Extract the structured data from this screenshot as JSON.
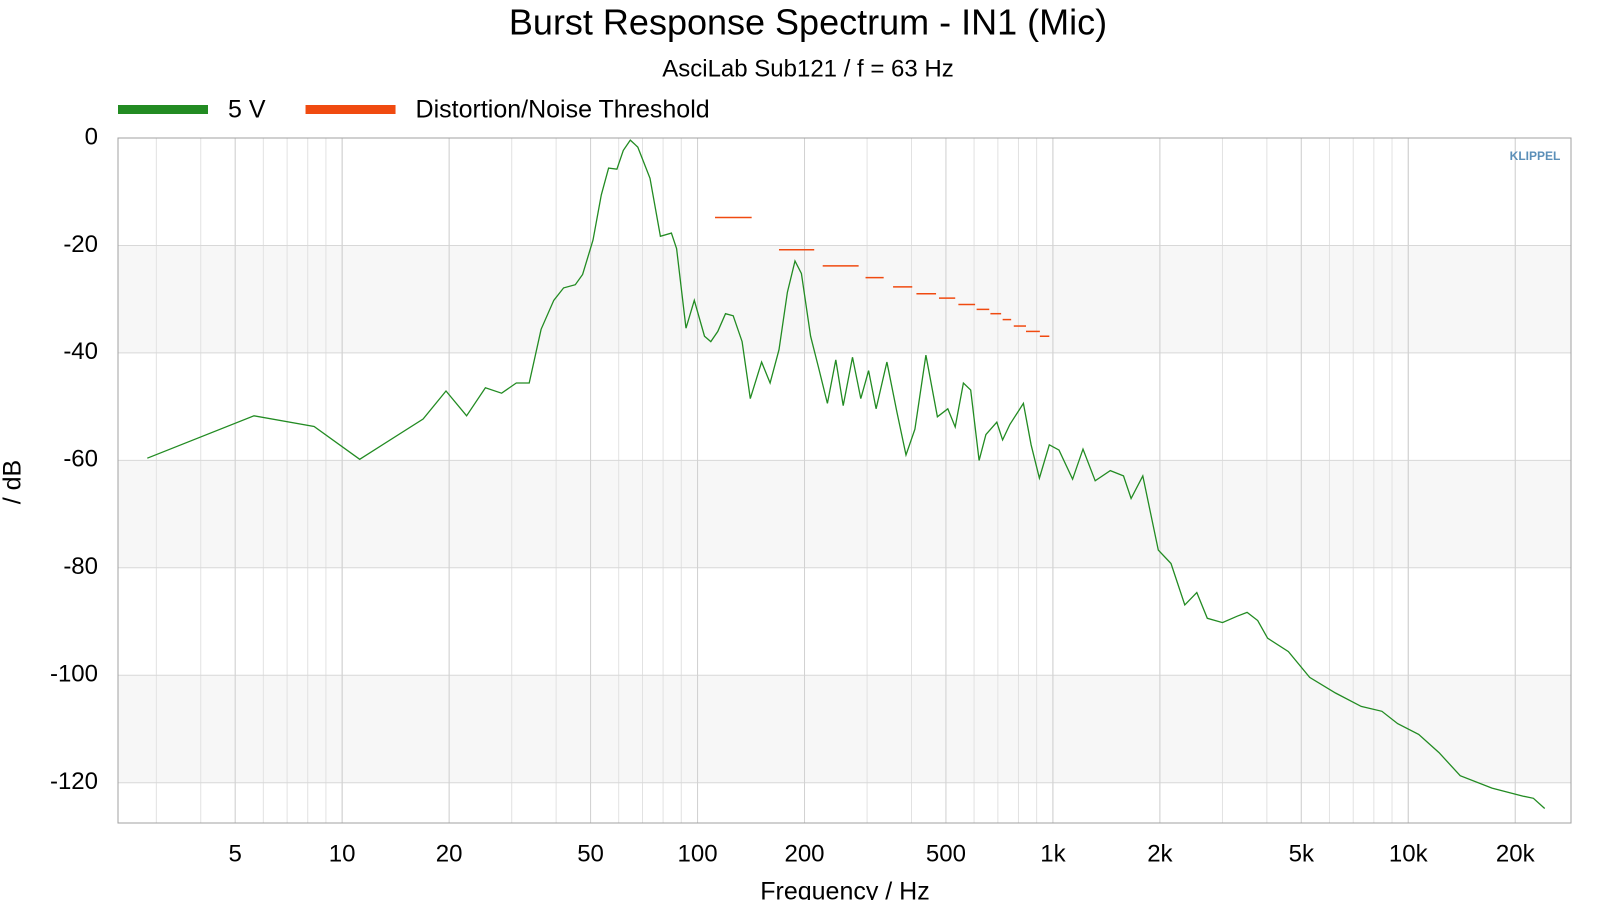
{
  "chart_data": {
    "type": "line",
    "title": "Burst Response Spectrum - IN1 (Mic)",
    "subtitle": "AsciLab Sub121 / f = 63 Hz",
    "xlabel": "Frequency / Hz",
    "ylabel": "/ dB",
    "logo": "KLIPPEL",
    "xscale": "log",
    "minor_grid": true,
    "xlim": [
      2.34,
      28700
    ],
    "ylim": [
      -127.5,
      0
    ],
    "xticks": [
      5,
      10,
      20,
      50,
      100,
      200,
      500,
      {
        "value": 1000,
        "label": "1k"
      },
      {
        "value": 2000,
        "label": "2k"
      },
      {
        "value": 5000,
        "label": "5k"
      },
      {
        "value": 10000,
        "label": "10k"
      },
      {
        "value": 20000,
        "label": "20k"
      }
    ],
    "yticks": [
      0,
      -20,
      -40,
      -60,
      -80,
      -100,
      -120
    ],
    "legend": "top-left",
    "series": [
      {
        "name": "5 V",
        "color": "#228b22",
        "x": [
          2.83,
          5.65,
          8.34,
          11.2,
          16.9,
          19.6,
          22.4,
          25.3,
          28.1,
          30.9,
          33.6,
          36.3,
          39.4,
          42,
          45.3,
          47.5,
          50.8,
          53.6,
          56.2,
          59.3,
          61.8,
          64.7,
          67.9,
          73.5,
          78.6,
          84.4,
          87.3,
          92.8,
          97.9,
          104.6,
          109,
          114,
          119.9,
          126,
          133.5,
          140.8,
          151.5,
          160,
          169.5,
          179,
          188,
          196,
          208,
          219,
          232,
          245,
          257,
          273,
          288,
          303,
          318,
          341,
          364,
          386,
          409,
          439,
          473,
          506,
          531,
          560,
          587,
          620,
          648,
          695,
          722,
          757,
          826,
          868,
          916,
          977,
          1040,
          1136,
          1215,
          1315,
          1450,
          1580,
          1660,
          1790,
          1980,
          2150,
          2350,
          2540,
          2720,
          3000,
          3300,
          3520,
          3770,
          4020,
          4600,
          5280,
          6240,
          7370,
          8430,
          9330,
          10700,
          12200,
          14000,
          17200,
          21000,
          22500,
          24200
        ],
        "values": [
          -59.6,
          -51.7,
          -53.7,
          -59.8,
          -52.3,
          -47.1,
          -51.7,
          -46.5,
          -47.5,
          -45.6,
          -45.6,
          -35.6,
          -30.2,
          -27.9,
          -27.3,
          -25.4,
          -19,
          -10.6,
          -5.6,
          -5.8,
          -2.3,
          -0.4,
          -1.7,
          -7.5,
          -18.3,
          -17.7,
          -20.6,
          -35.4,
          -30.2,
          -36.9,
          -37.9,
          -36,
          -32.7,
          -33.1,
          -37.9,
          -48.5,
          -41.7,
          -45.6,
          -39.4,
          -28.7,
          -22.9,
          -25.2,
          -36.9,
          -42.7,
          -49.4,
          -41.3,
          -49.8,
          -40.8,
          -48.5,
          -43.3,
          -50.4,
          -41.7,
          -51,
          -59,
          -54.2,
          -40.4,
          -51.9,
          -50.4,
          -53.8,
          -45.6,
          -46.9,
          -60,
          -55.2,
          -52.9,
          -56.2,
          -53.3,
          -49.4,
          -57.1,
          -63.3,
          -57.1,
          -58.1,
          -63.5,
          -57.9,
          -63.8,
          -61.9,
          -62.9,
          -67.1,
          -62.9,
          -76.7,
          -79.2,
          -86.9,
          -84.6,
          -89.4,
          -90.2,
          -89,
          -88.3,
          -89.8,
          -93.1,
          -95.6,
          -100.4,
          -103.3,
          -105.8,
          -106.7,
          -109,
          -111,
          -114.4,
          -118.7,
          -121,
          -122.5,
          -122.9,
          -124.8
        ]
      },
      {
        "name": "Distortion/Noise Threshold",
        "color": "#f04a10",
        "x": [
          112,
          169.5,
          225,
          297,
          355,
          413,
          478,
          542,
          610,
          667,
          722,
          776,
          840,
          919
        ],
        "x_end": [
          142,
          213,
          284,
          334,
          402,
          469,
          531,
          604,
          662,
          715,
          763,
          840,
          919,
          977
        ],
        "values": [
          -14.8,
          -20.8,
          -23.8,
          -26,
          -27.7,
          -29,
          -29.8,
          -31,
          -31.9,
          -32.7,
          -33.8,
          -35,
          -36,
          -36.9
        ]
      }
    ]
  }
}
